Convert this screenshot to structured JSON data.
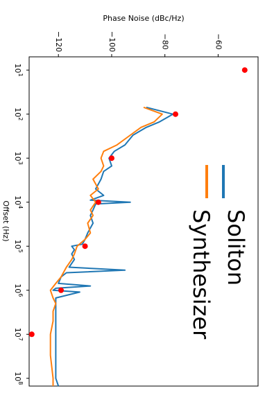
{
  "chart_data": {
    "type": "line",
    "orientation": "rotated 90 degrees clockwise (x axis vertical, y axis horizontal)",
    "title": "",
    "xlabel": "Offset (Hz)",
    "ylabel": "Phase Noise (dBc/Hz)",
    "xscale": "log",
    "xlim": [
      5,
      150000000
    ],
    "ylim": [
      -131,
      -45
    ],
    "x_ticks": [
      {
        "value": 10,
        "base": "10",
        "exp": "1"
      },
      {
        "value": 100,
        "base": "10",
        "exp": "2"
      },
      {
        "value": 1000,
        "base": "10",
        "exp": "3"
      },
      {
        "value": 10000,
        "base": "10",
        "exp": "4"
      },
      {
        "value": 100000,
        "base": "10",
        "exp": "5"
      },
      {
        "value": 1000000,
        "base": "10",
        "exp": "6"
      },
      {
        "value": 10000000,
        "base": "10",
        "exp": "7"
      },
      {
        "value": 100000000,
        "base": "10",
        "exp": "8"
      }
    ],
    "y_ticks": [
      {
        "value": -120,
        "label": "−120"
      },
      {
        "value": -100,
        "label": "−100"
      },
      {
        "value": -80,
        "label": "−80"
      },
      {
        "value": -60,
        "label": "−60"
      }
    ],
    "legend_position": "top-right",
    "grid": false,
    "series": [
      {
        "name": "Soliton",
        "color": "#1f77b4",
        "x": [
          70,
          100,
          150,
          200,
          300,
          500,
          700,
          1000,
          1500,
          2000,
          3000,
          5000,
          7000,
          9000,
          10000,
          11000,
          15000,
          20000,
          30000,
          50000,
          70000,
          90000,
          100000,
          120000,
          150000,
          200000,
          300000,
          350000,
          400000,
          500000,
          700000,
          800000,
          900000,
          1000000,
          1100000,
          1500000,
          2000000,
          3000000,
          5000000,
          10000000,
          30000000,
          100000000,
          150000000
        ],
        "y": [
          -87,
          -77,
          -82,
          -87,
          -92,
          -95,
          -99,
          -101,
          -100,
          -103,
          -104,
          -106,
          -103,
          -108,
          -93,
          -106,
          -107,
          -108,
          -107,
          -109,
          -110,
          -111,
          -115,
          -114,
          -115,
          -114,
          -116,
          -95,
          -117,
          -119,
          -120,
          -108,
          -121,
          -122,
          -112,
          -121,
          -121,
          -121,
          -121,
          -121,
          -121,
          -121,
          -120
        ]
      },
      {
        "name": "Synthesizer",
        "color": "#ff7f0e",
        "x": [
          70,
          100,
          150,
          200,
          300,
          500,
          700,
          1000,
          1500,
          2000,
          3000,
          5000,
          7000,
          10000,
          15000,
          20000,
          30000,
          50000,
          70000,
          100000,
          150000,
          200000,
          300000,
          500000,
          700000,
          1000000,
          1500000,
          2000000,
          3000000,
          5000000,
          10000000,
          30000000,
          100000000,
          150000000
        ],
        "y": [
          -88,
          -81,
          -84,
          -89,
          -93,
          -98,
          -103,
          -104,
          -103,
          -104,
          -107,
          -105,
          -108,
          -106,
          -108,
          -107,
          -109,
          -108,
          -110,
          -113,
          -114,
          -115,
          -117,
          -119,
          -121,
          -123,
          -122,
          -121,
          -122,
          -122,
          -123,
          -123,
          -122,
          -122
        ]
      },
      {
        "name": "",
        "type": "scatter",
        "color": "#ff0000",
        "x": [
          10,
          100,
          1000,
          10000,
          100000,
          1000000,
          10000000
        ],
        "y": [
          -50,
          -76,
          -100,
          -105,
          -110,
          -119,
          -130
        ]
      }
    ]
  }
}
